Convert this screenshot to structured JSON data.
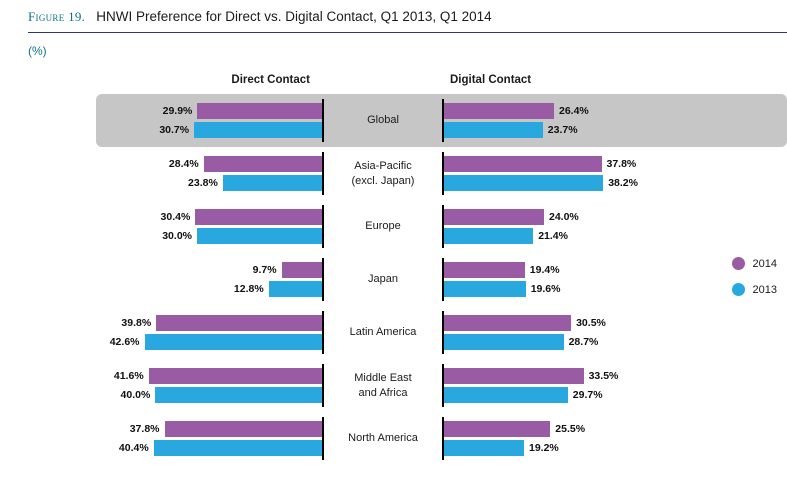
{
  "header": {
    "figure_label": "Figure 19.",
    "title": "HNWI Preference for Direct vs. Digital Contact, Q1 2013, Q1 2014",
    "unit": "(%)"
  },
  "columns": {
    "left": "Direct Contact",
    "right": "Digital Contact"
  },
  "legend": {
    "items": [
      {
        "label": "2014",
        "color": "#9A5BA5"
      },
      {
        "label": "2013",
        "color": "#29A8E0"
      }
    ]
  },
  "colors": {
    "y2014": "#9A5BA5",
    "y2013": "#29A8E0",
    "highlight": "#C6C6C6"
  },
  "chart_data": {
    "type": "bar",
    "variant": "butterfly",
    "title": "HNWI Preference for Direct vs. Digital Contact, Q1 2013, Q1 2014",
    "unit": "%",
    "xmax": 48,
    "left_group": "Direct Contact",
    "right_group": "Digital Contact",
    "legend_position": "right",
    "highlight_category": "Global",
    "categories": [
      "Global",
      "Asia-Pacific (excl. Japan)",
      "Europe",
      "Japan",
      "Latin America",
      "Middle East and Africa",
      "North America"
    ],
    "rows": [
      {
        "label_lines": [
          "Global"
        ],
        "highlight": true,
        "direct": {
          "y2014": 29.9,
          "y2013": 30.7
        },
        "digital": {
          "y2014": 26.4,
          "y2013": 23.7
        }
      },
      {
        "label_lines": [
          "Asia-Pacific",
          "(excl. Japan)"
        ],
        "highlight": false,
        "direct": {
          "y2014": 28.4,
          "y2013": 23.8
        },
        "digital": {
          "y2014": 37.8,
          "y2013": 38.2
        }
      },
      {
        "label_lines": [
          "Europe"
        ],
        "highlight": false,
        "direct": {
          "y2014": 30.4,
          "y2013": 30.0
        },
        "digital": {
          "y2014": 24.0,
          "y2013": 21.4
        }
      },
      {
        "label_lines": [
          "Japan"
        ],
        "highlight": false,
        "direct": {
          "y2014": 9.7,
          "y2013": 12.8
        },
        "digital": {
          "y2014": 19.4,
          "y2013": 19.6
        }
      },
      {
        "label_lines": [
          "Latin America"
        ],
        "highlight": false,
        "direct": {
          "y2014": 39.8,
          "y2013": 42.6
        },
        "digital": {
          "y2014": 30.5,
          "y2013": 28.7
        }
      },
      {
        "label_lines": [
          "Middle East",
          "and Africa"
        ],
        "highlight": false,
        "direct": {
          "y2014": 41.6,
          "y2013": 40.0
        },
        "digital": {
          "y2014": 33.5,
          "y2013": 29.7
        }
      },
      {
        "label_lines": [
          "North America"
        ],
        "highlight": false,
        "direct": {
          "y2014": 37.8,
          "y2013": 40.4
        },
        "digital": {
          "y2014": 25.5,
          "y2013": 19.2
        }
      }
    ]
  }
}
